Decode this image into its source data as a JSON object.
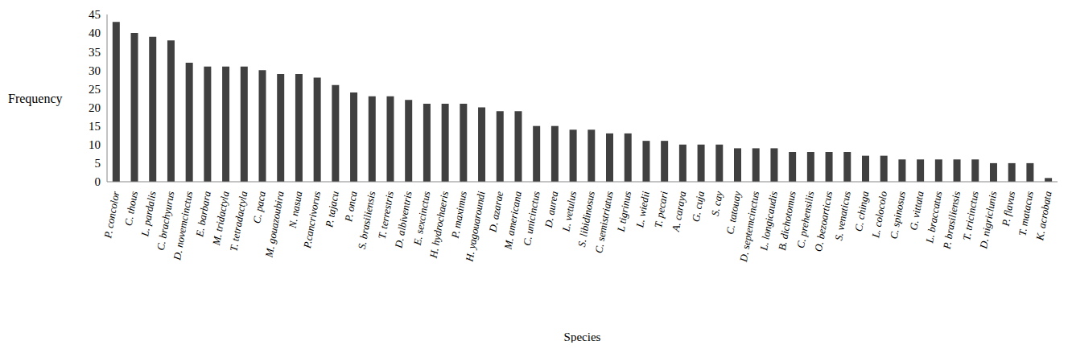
{
  "chart_data": {
    "type": "bar",
    "x_label": "Species",
    "y_label": "Frequency",
    "categories": [
      "P. concolor",
      "C. thous",
      "L. pardalis",
      "C. brachyurus",
      "D. novemcinctus",
      "E. barbara",
      "M. tridactyla",
      "T. tetradactyla",
      "C. paca",
      "M. gouazoubira",
      "N. nasua",
      "P.cancrivorus",
      "P. tajacu",
      "P. onca",
      "S. brasiliensis",
      "T. terrestris",
      "D. albiventris",
      "E. sexcinctus",
      "H. hydrochaeris",
      "P. maximus",
      "H. yagouaroundi",
      "D. azarae",
      "M. americana",
      "C. unicinctus",
      "D. aurea",
      "L. vetulus",
      "S. libidinosus",
      "C. semistriatus",
      "L tigrinus",
      "L. wiedii",
      "T. pecari",
      "A. caraya",
      "G. cuja",
      "S. cay",
      "C. tatouay",
      "D. septemcinctus",
      "L. longicaudis",
      "B. dichotomus",
      "C. prehensilis",
      "O. bezoarticus",
      "S. venaticus",
      "C. chinga",
      "L. colocolo",
      "C. spinosus",
      "G. vittata",
      "L. braccatus",
      "P. brasiliensis",
      "T. tricinctus",
      "D. nigriclunis",
      "P. flavus",
      "T. matacus",
      "K. acrobata"
    ],
    "values": [
      43,
      40,
      39,
      38,
      32,
      31,
      31,
      31,
      30,
      29,
      29,
      28,
      26,
      24,
      23,
      23,
      22,
      21,
      21,
      21,
      20,
      19,
      19,
      15,
      15,
      14,
      14,
      13,
      13,
      11,
      11,
      10,
      10,
      10,
      9,
      9,
      9,
      8,
      8,
      8,
      8,
      7,
      7,
      6,
      6,
      6,
      6,
      6,
      5,
      5,
      5,
      1
    ],
    "color": "#404040",
    "ylim": [
      0,
      45
    ],
    "yticks": [
      0,
      5,
      10,
      15,
      20,
      25,
      30,
      35,
      40,
      45
    ],
    "grid": false
  }
}
